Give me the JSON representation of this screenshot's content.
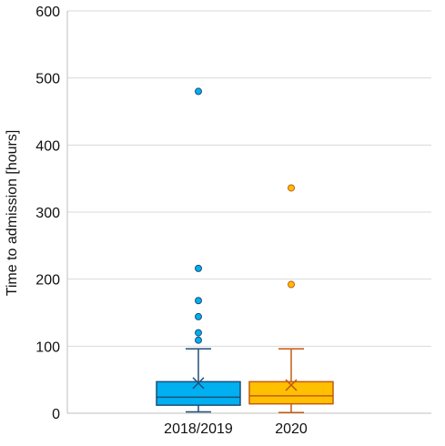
{
  "chart_data": {
    "type": "box",
    "ylabel": "Time to admission [hours]",
    "ylim": [
      0,
      600
    ],
    "yticks": [
      0,
      100,
      200,
      300,
      400,
      500,
      600
    ],
    "grid": true,
    "categories": [
      "2018/2019",
      "2020"
    ],
    "series": [
      {
        "category": "2018/2019",
        "color": "#00B0F0",
        "stroke": "#1F4E79",
        "min": 2,
        "q1": 12,
        "median": 24,
        "q3": 47,
        "max": 96,
        "mean": 45,
        "outliers": [
          109,
          120,
          144,
          168,
          216,
          480
        ]
      },
      {
        "category": "2020",
        "color": "#FFC000",
        "stroke": "#C55A11",
        "min": 1,
        "q1": 14,
        "median": 26,
        "q3": 47,
        "max": 96,
        "mean": 42,
        "outliers": [
          192,
          336
        ]
      }
    ]
  }
}
